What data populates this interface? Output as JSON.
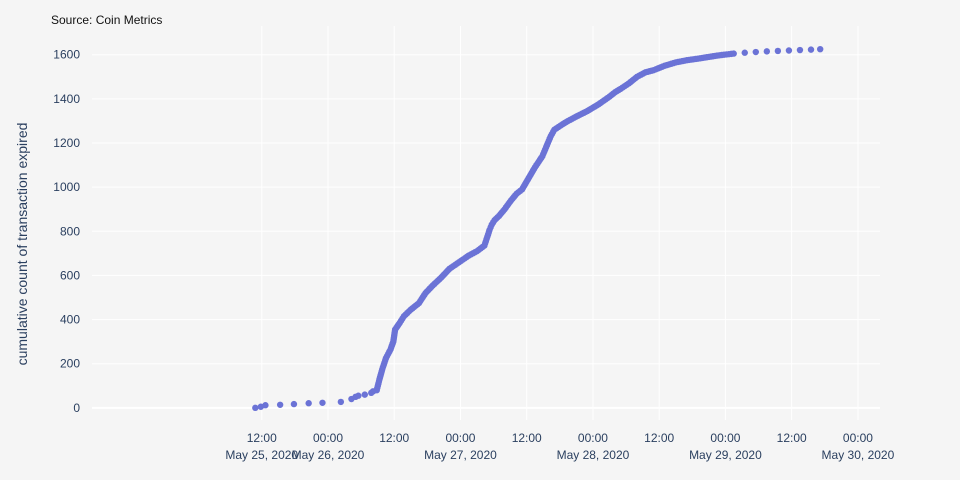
{
  "source": "Source: Coin Metrics",
  "chart_data": {
    "type": "scatter",
    "title": "",
    "xlabel": "",
    "ylabel": "cumulative count of transaction expired",
    "colors": {
      "marker": "#6b73d6",
      "grid": "#ffffff",
      "background": "#f5f5f5",
      "axis_text": "#2a3f5f"
    },
    "grid": true,
    "legend": "none",
    "xlim": [
      "2020-05-24T05:15",
      "2020-05-30T04:00"
    ],
    "ylim": [
      -55,
      1730
    ],
    "x_ticks": [
      {
        "value": "2020-05-25T12:00",
        "line1": "12:00",
        "line2": "May 25, 2020"
      },
      {
        "value": "2020-05-26T00:00",
        "line1": "00:00",
        "line2": "May 26, 2020"
      },
      {
        "value": "2020-05-26T12:00",
        "line1": "12:00",
        "line2": ""
      },
      {
        "value": "2020-05-27T00:00",
        "line1": "00:00",
        "line2": "May 27, 2020"
      },
      {
        "value": "2020-05-27T12:00",
        "line1": "12:00",
        "line2": ""
      },
      {
        "value": "2020-05-28T00:00",
        "line1": "00:00",
        "line2": "May 28, 2020"
      },
      {
        "value": "2020-05-28T12:00",
        "line1": "12:00",
        "line2": ""
      },
      {
        "value": "2020-05-29T00:00",
        "line1": "00:00",
        "line2": "May 29, 2020"
      },
      {
        "value": "2020-05-29T12:00",
        "line1": "12:00",
        "line2": ""
      },
      {
        "value": "2020-05-30T00:00",
        "line1": "00:00",
        "line2": "May 30, 2020"
      }
    ],
    "y_ticks": [
      0,
      200,
      400,
      600,
      800,
      1000,
      1200,
      1400,
      1600
    ],
    "series": [
      {
        "x": [
          "2020-05-25T10:50",
          "2020-05-25T11:50",
          "2020-05-25T12:40",
          "2020-05-25T15:20",
          "2020-05-25T17:50",
          "2020-05-25T20:30",
          "2020-05-25T23:00",
          "2020-05-26T02:20",
          "2020-05-26T04:15",
          "2020-05-26T05:00",
          "2020-05-26T05:30",
          "2020-05-26T06:40",
          "2020-05-26T07:50",
          "2020-05-26T08:10",
          "2020-05-26T08:50",
          "2020-05-26T09:20",
          "2020-05-26T09:50",
          "2020-05-26T10:30",
          "2020-05-26T11:20",
          "2020-05-26T11:50",
          "2020-05-26T12:10",
          "2020-05-26T13:00",
          "2020-05-26T13:45",
          "2020-05-26T15:00",
          "2020-05-26T16:30",
          "2020-05-26T17:40",
          "2020-05-26T19:00",
          "2020-05-26T20:30",
          "2020-05-26T22:00",
          "2020-05-26T23:45",
          "2020-05-27T01:30",
          "2020-05-27T03:00",
          "2020-05-27T04:20",
          "2020-05-27T05:00",
          "2020-05-27T05:15",
          "2020-05-27T05:40",
          "2020-05-27T06:10",
          "2020-05-27T07:00",
          "2020-05-27T08:00",
          "2020-05-27T09:10",
          "2020-05-27T10:10",
          "2020-05-27T11:10",
          "2020-05-27T12:20",
          "2020-05-27T13:30",
          "2020-05-27T14:50",
          "2020-05-27T15:30",
          "2020-05-27T16:20",
          "2020-05-27T17:00",
          "2020-05-27T18:30",
          "2020-05-27T19:30",
          "2020-05-27T21:00",
          "2020-05-27T23:00",
          "2020-05-28T01:00",
          "2020-05-28T03:00",
          "2020-05-28T04:00",
          "2020-05-28T05:00",
          "2020-05-28T06:30",
          "2020-05-28T08:00",
          "2020-05-28T09:30",
          "2020-05-28T11:00",
          "2020-05-28T13:00",
          "2020-05-28T15:00",
          "2020-05-28T17:00",
          "2020-05-28T19:00",
          "2020-05-28T21:00",
          "2020-05-28T22:30",
          "2020-05-28T23:45",
          "2020-05-29T01:30",
          "2020-05-29T03:30",
          "2020-05-29T05:30",
          "2020-05-29T07:30",
          "2020-05-29T09:30",
          "2020-05-29T11:30",
          "2020-05-29T13:30",
          "2020-05-29T15:30",
          "2020-05-29T17:10"
        ],
        "y": [
          0,
          5,
          12,
          14,
          17,
          21,
          23,
          27,
          40,
          50,
          55,
          60,
          68,
          75,
          80,
          130,
          175,
          225,
          265,
          300,
          355,
          385,
          415,
          445,
          475,
          520,
          555,
          590,
          630,
          660,
          690,
          710,
          735,
          785,
          805,
          830,
          850,
          870,
          900,
          940,
          970,
          990,
          1040,
          1090,
          1140,
          1180,
          1230,
          1260,
          1285,
          1300,
          1320,
          1345,
          1375,
          1410,
          1430,
          1445,
          1470,
          1500,
          1520,
          1530,
          1550,
          1565,
          1575,
          1582,
          1590,
          1596,
          1600,
          1605,
          1609,
          1612,
          1615,
          1617,
          1619,
          1621,
          1623,
          1625
        ]
      }
    ]
  }
}
